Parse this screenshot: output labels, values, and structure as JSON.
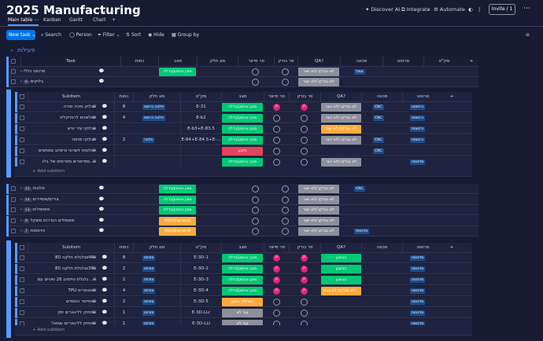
{
  "board": {
    "title": "2025 Manufacturing",
    "chevron": "⌄"
  },
  "topright": {
    "discover": "Discover AI",
    "integrate": "Integrate",
    "automate": "Automate",
    "invite": "Invite / 1",
    "more": "⋯"
  },
  "tabs": [
    {
      "label": "Main table ⋯"
    },
    {
      "label": "Kanban"
    },
    {
      "label": "Gantt"
    },
    {
      "label": "Chart"
    },
    {
      "label": "+"
    }
  ],
  "toolbar": {
    "new": "New task ⌄",
    "search": "Search",
    "person": "Person",
    "filter": "Filter ⌄",
    "sort": "Sort",
    "hide": "Hide",
    "group": "Group by",
    "collapse": "⊖"
  },
  "group": {
    "name": "פעילות"
  },
  "main_header": [
    "Task",
    "כמות",
    "מצב",
    "סוג חלק",
    "פר מייצר",
    "פר בודק",
    "QA?",
    "מכונה",
    "סרטוט",
    "מק\"ט",
    "+"
  ],
  "sub_header": [
    "Subitem",
    "כמות",
    "סוג חלק",
    "מק\"ט",
    "מצב",
    "פר מייצר",
    "פר בודק",
    "QA?",
    "מכונה",
    "סרטוט",
    "+"
  ],
  "status": {
    "done": "מוכן אחסון/בדלה",
    "stuck": "תקוע",
    "working": "Working on it",
    "wait": "בהמתנה/אבד גבוה",
    "none": "עוד לא",
    "qa_no": "לא נבדקו /לא יוצר",
    "progress": "בתהליך בוצע"
  },
  "rows_a": [
    {
      "task": "סרטוט כללי",
      "count": "",
      "status": "done",
      "qa": "לא נבדקו /לא יוצר",
      "machine": "עמוד"
    },
    {
      "task": "בלוקים",
      "badge": "6",
      "count": "",
      "status": "",
      "qa": "לא נבדקו /לא יוצר",
      "machine": ""
    }
  ],
  "sub_a": [
    {
      "name": "בלוק סיכה סורה",
      "count": "8",
      "type": "פלטה  כרסומ",
      "sku": "E-31",
      "status": "done",
      "qa": "לא נבדקו /לא יוצר",
      "machine": "CNC",
      "drawing": "כרסומת"
    },
    {
      "name": "פלאגים לרוחיקליה",
      "count": "4",
      "type": "פלטה  כרסומ",
      "sku": "E-b2",
      "status": "done",
      "qa": "לא נבדקו /לא יוצר",
      "machine": "CNC",
      "drawing": "כרסומת"
    },
    {
      "name": "בלוקי ציר יורא",
      "count": "",
      "type": "",
      "sku": "E-b3+E-83.5",
      "status": "done",
      "qa": "לא נבדקו/ לא יצור",
      "machine": "",
      "drawing": "כרסומת"
    },
    {
      "name": "בלוקי מחזור",
      "count": "2",
      "type": "פלטה",
      "sku": "E-84+E-84.5+E-...",
      "status": "done",
      "qa": "לא נבדקו /לא יוצר",
      "machine": "CNC",
      "drawing": "כרסומת"
    },
    {
      "name": "פלטות לשרוני טיימינג צמתונים",
      "count": "",
      "type": "",
      "sku": "",
      "status": "stuck",
      "qa": "",
      "machine": "CNC",
      "drawing": ""
    },
    {
      "name": "ספייסרים מפרסים של בלו...",
      "count": "",
      "type": "",
      "sku": "",
      "status": "done",
      "qa": "לא נבדקו /לא יוצר",
      "machine": "",
      "drawing": "מדפסות"
    }
  ],
  "add_sub": "+ Add subitem",
  "rows_b": [
    {
      "task": "פלטות",
      "badge": "15",
      "status": "done",
      "qa": "לא נבדקו /לא יוצר",
      "machine": "CNC"
    },
    {
      "task": "צירים/פופיירים",
      "badge": "14",
      "status": "done",
      "qa": "לא נבדקו /לא יוצר",
      "machine": ""
    },
    {
      "task": "מוסופלים",
      "badge": "13",
      "status": "done",
      "qa": "לא נבדקו /לא יוצר",
      "machine": ""
    },
    {
      "task": "מוספלים הגדרות משקל",
      "badge": "9",
      "status": "working",
      "qa": "לא נבדקו /לא יוצר",
      "machine": ""
    },
    {
      "task": "הדפסות",
      "badge": "7",
      "status": "working",
      "qa": "לא נבדקו /לא יוצר",
      "machine": "מדפסות"
    }
  ],
  "sub_b": [
    {
      "name": "גלגלת חלקה 80s46",
      "count": "8",
      "type": "מודפס",
      "sku": "E-3D-1",
      "status": "done",
      "qa": "בבוצע",
      "machine": "",
      "drawing": "מדפסות"
    },
    {
      "name": "גלגלת חלקה 80s36",
      "count": "2",
      "type": "מודפס",
      "sku": "E-3D-2",
      "status": "done",
      "qa": "בבוצע",
      "machine": "",
      "drawing": "מדפסות"
    },
    {
      "name": "גלגלת טיימינג 26 שיניים עם ...",
      "count": "2",
      "type": "מודפס",
      "sku": "E-3D-3",
      "status": "done",
      "qa": "בבוצע",
      "machine": "",
      "drawing": "מדפסות"
    },
    {
      "name": "TPU סטופרים",
      "count": "4",
      "type": "מודפס",
      "sku": "E-3D-4",
      "status": "done",
      "qa": "לא נבדקו/ לא בבה...",
      "machine": "",
      "drawing": "מדפסות"
    },
    {
      "name": "ספייסר הגומיים",
      "count": "2",
      "type": "מודפס",
      "sku": "E-3D-5",
      "status": "progress",
      "qa": "",
      "machine": "",
      "drawing": "מדפסות"
    },
    {
      "name": "מחזק ללינארים ימין",
      "count": "1",
      "type": "מודפס",
      "sku": "E-3D-LLr",
      "status": "none",
      "qa": "",
      "machine": "",
      "drawing": "מדפסות"
    },
    {
      "name": "מחזק ללינאריים שמאל",
      "count": "1",
      "type": "מודפס",
      "sku": "E-3D-LLl",
      "status": "none",
      "qa": "",
      "machine": "",
      "drawing": "מדפסות"
    }
  ],
  "colors": {
    "bg": "#181b34",
    "done": "#00c875",
    "stuck": "#e2445c",
    "working": "#fdab3d",
    "qa": "#8d8f9c",
    "accent": "#579bfc",
    "new": "#0073ea",
    "cnc": "#1b4c8c"
  }
}
